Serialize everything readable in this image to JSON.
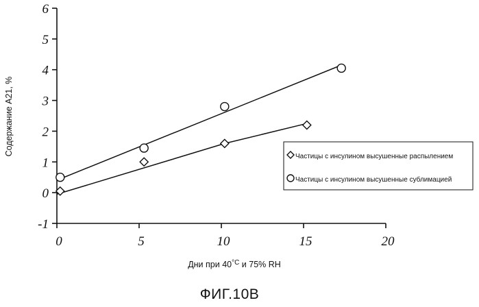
{
  "chart_data": {
    "type": "scatter",
    "title": "",
    "xlabel": "Дни при 40°C и 75% RH",
    "xlabel_parts": {
      "prefix": "Дни при ",
      "temp": "40",
      "degree": "°C",
      "suffix": " и 75% RH"
    },
    "ylabel": "Содержание А21, %",
    "xlim": [
      0,
      20
    ],
    "ylim": [
      -1,
      6
    ],
    "x_ticks": [
      0,
      5,
      10,
      15,
      20
    ],
    "y_ticks": [
      -1,
      0,
      1,
      2,
      3,
      4,
      5,
      6
    ],
    "x_tick_labels": [
      "0",
      "5",
      "10",
      "15",
      "20"
    ],
    "y_tick_labels": [
      "-1",
      "0",
      "1",
      "2",
      "3",
      "4",
      "5",
      "6"
    ],
    "grid": false,
    "legend_position": "right",
    "series": [
      {
        "name": "Частицы с инсулином высушенные распылением",
        "marker": "diamond",
        "x": [
          0.2,
          5.3,
          10.2,
          15.2
        ],
        "y": [
          0.05,
          1.0,
          1.6,
          2.2
        ],
        "fit_line": [
          [
            0,
            -0.05
          ],
          [
            10.2,
            1.6
          ],
          [
            15.2,
            2.25
          ]
        ]
      },
      {
        "name": "Частицы с инсулином высушенные сублимацией",
        "marker": "circle",
        "x": [
          0.2,
          5.3,
          10.2,
          17.3
        ],
        "y": [
          0.5,
          1.45,
          2.8,
          4.05
        ],
        "fit_line": [
          [
            0.2,
            0.45
          ],
          [
            17.3,
            4.15
          ]
        ]
      }
    ]
  },
  "caption": "ФИГ.10В"
}
